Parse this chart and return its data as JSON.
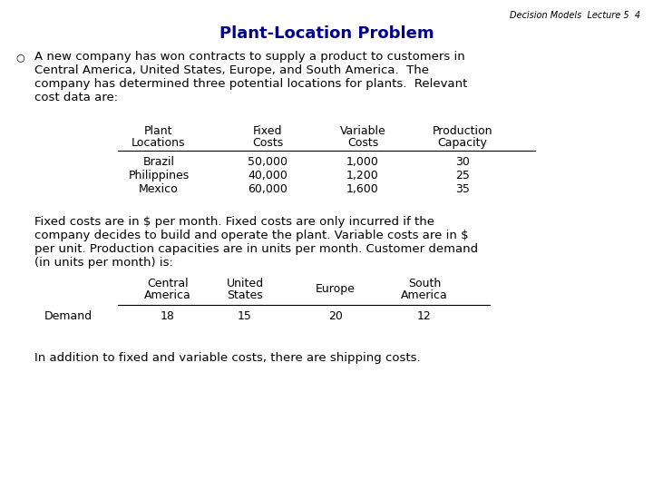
{
  "header_label": "Decision Models  Lecture 5  4",
  "title": "Plant-Location Problem",
  "title_color": "#00008B",
  "bullet_lines": [
    "A new company has won contracts to supply a product to customers in",
    "Central America, United States, Europe, and South America.  The",
    "company has determined three potential locations for plants.  Relevant",
    "cost data are:"
  ],
  "plant_table_col1_header": [
    "Plant",
    "Locations"
  ],
  "plant_table_col2_header": [
    "Fixed",
    "Costs"
  ],
  "plant_table_col3_header": [
    "Variable",
    "Costs"
  ],
  "plant_table_col4_header": [
    "Production",
    "Capacity"
  ],
  "plant_table_rows": [
    [
      "Brazil",
      "50,000",
      "1,000",
      "30"
    ],
    [
      "Philippines",
      "40,000",
      "1,200",
      "25"
    ],
    [
      "Mexico",
      "60,000",
      "1,600",
      "35"
    ]
  ],
  "mid_lines": [
    "Fixed costs are in $ per month. Fixed costs are only incurred if the",
    "company decides to build and operate the plant. Variable costs are in $",
    "per unit. Production capacities are in units per month. Customer demand",
    "(in units per month) is:"
  ],
  "demand_col_headers": [
    [
      "Central",
      "America"
    ],
    [
      "United",
      "States"
    ],
    [
      "Europe"
    ],
    [
      "South",
      "America"
    ]
  ],
  "demand_row_label": "Demand",
  "demand_values": [
    "18",
    "15",
    "20",
    "12"
  ],
  "footer_text": "In addition to fixed and variable costs, there are shipping costs.",
  "bg_color": "#FFFFFF",
  "text_color": "#000000",
  "header_fontsize": 7,
  "title_fontsize": 13,
  "body_fontsize": 9.5,
  "table_fontsize": 9,
  "bullet_fontsize": 9.5
}
